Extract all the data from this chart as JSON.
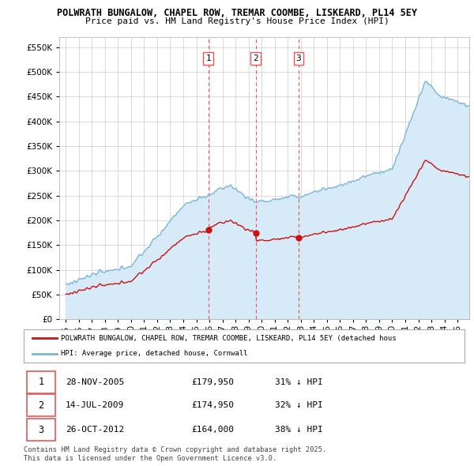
{
  "title_line1": "POLWRATH BUNGALOW, CHAPEL ROW, TREMAR COOMBE, LISKEARD, PL14 5EY",
  "title_line2": "Price paid vs. HM Land Registry's House Price Index (HPI)",
  "ylim": [
    0,
    570000
  ],
  "yticks": [
    0,
    50000,
    100000,
    150000,
    200000,
    250000,
    300000,
    350000,
    400000,
    450000,
    500000,
    550000
  ],
  "hpi_color": "#7ab5d8",
  "hpi_fill_color": "#d6eaf8",
  "price_color": "#cc1111",
  "vline_color": "#ee5555",
  "sale_dates_year": [
    2005.91,
    2009.54,
    2012.82
  ],
  "sale_prices": [
    179950,
    174950,
    164000
  ],
  "sale_labels": [
    "1",
    "2",
    "3"
  ],
  "legend_label_price": "POLWRATH BUNGALOW, CHAPEL ROW, TREMAR COOMBE, LISKEARD, PL14 5EY (detached hous",
  "legend_label_hpi": "HPI: Average price, detached house, Cornwall",
  "table_rows": [
    {
      "num": "1",
      "date": "28-NOV-2005",
      "price": "£179,950",
      "pct": "31% ↓ HPI"
    },
    {
      "num": "2",
      "date": "14-JUL-2009",
      "price": "£174,950",
      "pct": "32% ↓ HPI"
    },
    {
      "num": "3",
      "date": "26-OCT-2012",
      "price": "£164,000",
      "pct": "38% ↓ HPI"
    }
  ],
  "footnote": "Contains HM Land Registry data © Crown copyright and database right 2025.\nThis data is licensed under the Open Government Licence v3.0.",
  "background_color": "#ffffff",
  "grid_color": "#cccccc",
  "xmin": 1994.5,
  "xmax": 2025.9
}
